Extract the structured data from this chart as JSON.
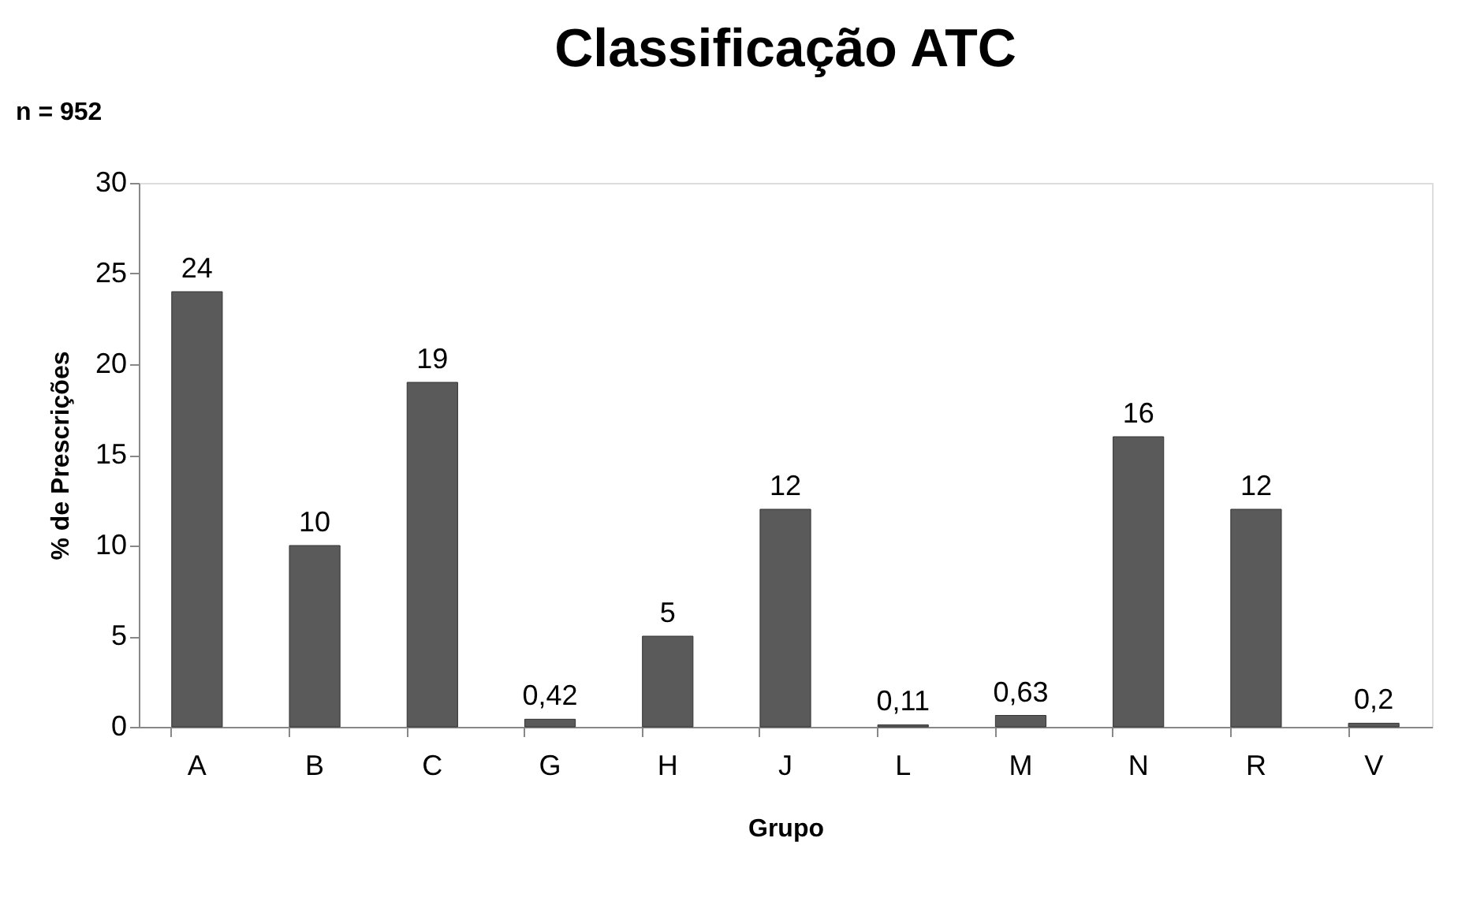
{
  "chart_data": {
    "type": "bar",
    "title": "Classificação ATC",
    "xlabel": "Grupo",
    "ylabel": "% de Prescrições",
    "annotations": [
      "n = 952"
    ],
    "categories": [
      "A",
      "B",
      "C",
      "G",
      "H",
      "J",
      "L",
      "M",
      "N",
      "R",
      "V"
    ],
    "values": [
      24,
      10,
      19,
      0.42,
      5,
      12,
      0.11,
      0.63,
      16,
      12,
      0.2
    ],
    "value_labels": [
      "24",
      "10",
      "19",
      "0,42",
      "5",
      "12",
      "0,11",
      "0,63",
      "16",
      "12",
      "0,2"
    ],
    "color": "#5a5a5a",
    "ylim": [
      0,
      30
    ],
    "yticks": [
      0,
      5,
      10,
      15,
      20,
      25,
      30
    ],
    "grid": false
  }
}
